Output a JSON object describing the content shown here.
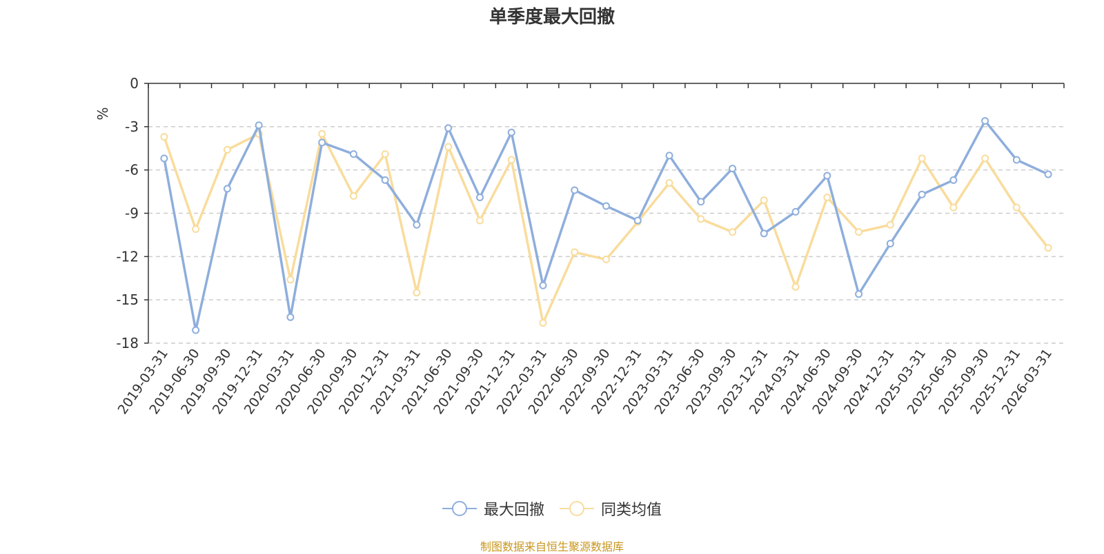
{
  "title": "单季度最大回撤",
  "source_note": "制图数据来自恒生聚源数据库",
  "chart_data": {
    "type": "line",
    "title": "单季度最大回撤",
    "ylabel": "%",
    "xlabel": "",
    "ylim": [
      -18,
      0
    ],
    "yticks": [
      0,
      -3,
      -6,
      -9,
      -12,
      -15,
      -18
    ],
    "grid": true,
    "legend_position": "bottom",
    "categories": [
      "2019-03-31",
      "2019-06-30",
      "2019-09-30",
      "2019-12-31",
      "2020-03-31",
      "2020-06-30",
      "2020-09-30",
      "2020-12-31",
      "2021-03-31",
      "2021-06-30",
      "2021-09-30",
      "2021-12-31",
      "2022-03-31",
      "2022-06-30",
      "2022-09-30",
      "2022-12-31",
      "2023-03-31",
      "2023-06-30",
      "2023-09-30",
      "2023-12-31",
      "2024-03-31",
      "2024-06-30",
      "2024-09-30",
      "2024-12-31",
      "2025-03-31",
      "2025-06-30",
      "2025-09-30",
      "2025-12-31",
      "2026-03-31"
    ],
    "series": [
      {
        "name": "最大回撤",
        "color": "#8eaedc",
        "values": [
          -5.2,
          -17.1,
          -7.3,
          -2.9,
          -16.2,
          -4.1,
          -4.9,
          -6.7,
          -9.8,
          -3.1,
          -7.9,
          -3.4,
          -14.0,
          -7.4,
          -8.5,
          -9.5,
          -5.0,
          -8.2,
          -5.9,
          -10.4,
          -8.9,
          -6.4,
          -14.6,
          -11.1,
          -7.7,
          -6.7,
          -2.6,
          -5.3,
          -6.3
        ]
      },
      {
        "name": "同类均值",
        "color": "#f9dc9c",
        "values": [
          -3.7,
          -10.1,
          -4.6,
          -3.5,
          -13.6,
          -3.5,
          -7.8,
          -4.9,
          -14.5,
          -4.4,
          -9.5,
          -5.3,
          -16.6,
          -11.7,
          -12.2,
          -9.6,
          -6.9,
          -9.4,
          -10.3,
          -8.1,
          -14.1,
          -7.9,
          -10.3,
          -9.8,
          -5.2,
          -8.6,
          -5.2,
          -8.6,
          -11.4
        ]
      }
    ]
  }
}
